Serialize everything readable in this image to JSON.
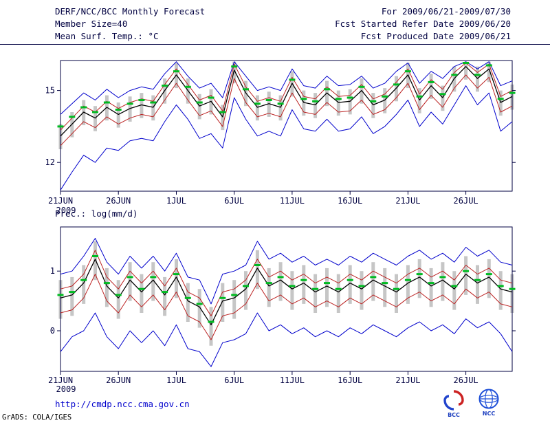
{
  "header": {
    "left": [
      "DERF/NCC/BCC Monthly Forecast",
      "Member Size=40"
    ],
    "right": [
      "For 2009/06/21-2009/07/30",
      "Fcst Started Refer Date 2009/06/20",
      "Fcst Produced Date 2009/06/21"
    ]
  },
  "footer": {
    "url": "http://cmdp.ncc.cma.gov.cn",
    "credit": "GrADS: COLA/IGES",
    "bcc_text": "BCC",
    "ncc_text": "NCC"
  },
  "colors": {
    "text": "#000040",
    "min_max_line": "#0000cc",
    "spread_line": "#bb2222",
    "mean_line": "#000000",
    "obs_dash": "#00bb22",
    "spread_bar": "#c6c6c6",
    "url_link": "#0000cc"
  },
  "chart_data": [
    {
      "type": "line",
      "title": "Mean Surf. Temp.: °C",
      "x_year_label": "2009",
      "x_tick_labels": [
        "21JUN",
        "26JUN",
        "1JUL",
        "6JUL",
        "11JUL",
        "16JUL",
        "21JUL",
        "26JUL"
      ],
      "x_tick_days": [
        0,
        5,
        10,
        15,
        20,
        25,
        30,
        35
      ],
      "n_days": 40,
      "ylim": [
        10.8,
        16.25
      ],
      "yticks": [
        12,
        15
      ],
      "grid": false,
      "legend": "none",
      "series": [
        {
          "name": "ensemble-max",
          "color": "#0000cc",
          "width": 1,
          "values": [
            14.0,
            14.45,
            14.9,
            14.6,
            15.05,
            14.7,
            15.0,
            15.15,
            15.05,
            15.7,
            16.2,
            15.6,
            15.1,
            15.3,
            14.7,
            16.2,
            15.6,
            15.0,
            15.15,
            15.0,
            15.9,
            15.2,
            15.1,
            15.6,
            15.2,
            15.25,
            15.6,
            15.1,
            15.3,
            15.8,
            16.15,
            15.3,
            15.8,
            15.5,
            16.0,
            16.2,
            15.9,
            16.2,
            15.2,
            15.4
          ]
        },
        {
          "name": "upper-spread",
          "color": "#bb2222",
          "width": 1,
          "values": [
            13.35,
            13.85,
            14.35,
            14.1,
            14.55,
            14.25,
            14.5,
            14.65,
            14.55,
            15.25,
            15.9,
            15.25,
            14.6,
            14.8,
            14.15,
            16.1,
            15.15,
            14.55,
            14.7,
            14.55,
            15.55,
            14.75,
            14.65,
            15.15,
            14.75,
            14.8,
            15.25,
            14.65,
            14.85,
            15.35,
            15.9,
            14.85,
            15.45,
            15.05,
            15.75,
            16.15,
            15.75,
            16.1,
            14.75,
            15.0
          ]
        },
        {
          "name": "ensemble-mean",
          "color": "#000000",
          "width": 1.3,
          "values": [
            13.1,
            13.6,
            14.1,
            13.85,
            14.3,
            14.0,
            14.25,
            14.4,
            14.3,
            15.0,
            15.65,
            15.0,
            14.35,
            14.55,
            13.9,
            15.85,
            14.9,
            14.3,
            14.45,
            14.3,
            15.3,
            14.5,
            14.4,
            14.9,
            14.5,
            14.55,
            15.0,
            14.4,
            14.6,
            15.1,
            15.65,
            14.6,
            15.2,
            14.7,
            15.5,
            16.0,
            15.5,
            15.9,
            14.5,
            14.75
          ]
        },
        {
          "name": "lower-spread",
          "color": "#bb2222",
          "width": 1,
          "values": [
            12.7,
            13.2,
            13.7,
            13.45,
            13.9,
            13.6,
            13.85,
            14.0,
            13.9,
            14.6,
            15.3,
            14.6,
            13.95,
            14.15,
            13.5,
            15.5,
            14.5,
            13.9,
            14.05,
            13.9,
            14.9,
            14.1,
            14.0,
            14.5,
            14.1,
            14.15,
            14.6,
            14.0,
            14.2,
            14.7,
            15.3,
            14.2,
            14.8,
            14.3,
            15.1,
            15.65,
            15.1,
            15.55,
            14.1,
            14.35
          ]
        },
        {
          "name": "ensemble-min",
          "color": "#0000cc",
          "width": 1,
          "values": [
            10.85,
            11.6,
            12.3,
            12.0,
            12.6,
            12.5,
            12.9,
            13.0,
            12.9,
            13.7,
            14.4,
            13.8,
            13.0,
            13.2,
            12.6,
            14.7,
            13.8,
            13.1,
            13.3,
            13.1,
            14.2,
            13.4,
            13.3,
            13.8,
            13.3,
            13.4,
            13.9,
            13.2,
            13.5,
            14.0,
            14.6,
            13.5,
            14.1,
            13.6,
            14.4,
            15.2,
            14.4,
            14.9,
            13.3,
            13.7
          ]
        }
      ],
      "spread_bars": {
        "name": "ensemble-spread-bar",
        "color": "#c6c6c6",
        "low": [
          12.55,
          13.05,
          13.55,
          13.3,
          13.75,
          13.45,
          13.7,
          13.85,
          13.75,
          14.45,
          15.1,
          14.45,
          13.8,
          14.0,
          13.35,
          15.3,
          14.35,
          13.75,
          13.9,
          13.75,
          14.75,
          13.95,
          13.85,
          14.35,
          13.95,
          14.0,
          14.45,
          13.85,
          14.05,
          14.55,
          15.1,
          14.05,
          14.65,
          14.15,
          14.95,
          15.45,
          14.95,
          15.35,
          13.95,
          14.2
        ],
        "high": [
          13.6,
          14.1,
          14.6,
          14.35,
          14.8,
          14.5,
          14.75,
          14.9,
          14.8,
          15.5,
          16.15,
          15.5,
          14.85,
          15.05,
          14.4,
          16.2,
          15.4,
          14.8,
          14.95,
          14.8,
          15.8,
          15.0,
          14.9,
          15.4,
          15.0,
          15.05,
          15.5,
          14.9,
          15.1,
          15.6,
          16.15,
          15.1,
          15.7,
          15.2,
          16.0,
          16.2,
          16.0,
          16.2,
          15.0,
          15.25
        ]
      },
      "green_dashes": {
        "name": "observation-dash",
        "color": "#00bb22",
        "values": [
          13.5,
          13.9,
          14.3,
          14.1,
          14.5,
          14.2,
          14.45,
          14.6,
          14.5,
          15.2,
          15.8,
          15.15,
          14.5,
          14.7,
          14.1,
          16.0,
          15.05,
          14.45,
          14.6,
          14.45,
          15.45,
          14.65,
          14.55,
          15.05,
          14.65,
          14.7,
          15.15,
          14.55,
          14.75,
          15.25,
          15.8,
          14.75,
          15.35,
          14.85,
          15.65,
          16.15,
          15.65,
          16.05,
          14.65,
          14.9
        ]
      }
    },
    {
      "type": "line",
      "title": "Prec.: log(mm/d)",
      "x_year_label": "2009",
      "x_tick_labels": [
        "21JUN",
        "26JUN",
        "1JUL",
        "6JUL",
        "11JUL",
        "16JUL",
        "21JUL",
        "26JUL"
      ],
      "x_tick_days": [
        0,
        5,
        10,
        15,
        20,
        25,
        30,
        35
      ],
      "n_days": 40,
      "ylim": [
        -0.68,
        1.74
      ],
      "yticks": [
        0,
        1
      ],
      "grid": false,
      "legend": "none",
      "series": [
        {
          "name": "ensemble-max",
          "color": "#0000cc",
          "width": 1,
          "values": [
            0.95,
            1.0,
            1.25,
            1.55,
            1.15,
            0.95,
            1.25,
            1.05,
            1.25,
            1.0,
            1.3,
            0.9,
            0.85,
            0.45,
            0.95,
            1.0,
            1.1,
            1.5,
            1.2,
            1.3,
            1.15,
            1.25,
            1.1,
            1.2,
            1.1,
            1.25,
            1.15,
            1.3,
            1.2,
            1.1,
            1.25,
            1.35,
            1.2,
            1.3,
            1.15,
            1.4,
            1.25,
            1.35,
            1.15,
            1.1
          ]
        },
        {
          "name": "upper-spread",
          "color": "#bb2222",
          "width": 1,
          "values": [
            0.7,
            0.75,
            0.95,
            1.35,
            0.9,
            0.7,
            1.0,
            0.8,
            1.0,
            0.75,
            1.05,
            0.65,
            0.55,
            0.25,
            0.65,
            0.7,
            0.85,
            1.2,
            0.9,
            1.0,
            0.85,
            0.95,
            0.8,
            0.9,
            0.8,
            0.95,
            0.85,
            1.0,
            0.9,
            0.8,
            0.95,
            1.05,
            0.9,
            1.0,
            0.85,
            1.1,
            0.95,
            1.05,
            0.85,
            0.8
          ]
        },
        {
          "name": "ensemble-mean",
          "color": "#000000",
          "width": 1.3,
          "values": [
            0.55,
            0.6,
            0.8,
            1.2,
            0.75,
            0.55,
            0.85,
            0.65,
            0.85,
            0.6,
            0.9,
            0.5,
            0.4,
            0.1,
            0.5,
            0.55,
            0.7,
            1.05,
            0.75,
            0.85,
            0.7,
            0.8,
            0.65,
            0.75,
            0.65,
            0.8,
            0.7,
            0.85,
            0.75,
            0.65,
            0.8,
            0.9,
            0.75,
            0.85,
            0.7,
            0.95,
            0.8,
            0.9,
            0.7,
            0.65
          ]
        },
        {
          "name": "lower-spread",
          "color": "#bb2222",
          "width": 1,
          "values": [
            0.3,
            0.35,
            0.55,
            0.95,
            0.5,
            0.3,
            0.6,
            0.4,
            0.6,
            0.35,
            0.65,
            0.25,
            0.15,
            -0.15,
            0.25,
            0.3,
            0.45,
            0.8,
            0.5,
            0.6,
            0.45,
            0.55,
            0.4,
            0.5,
            0.4,
            0.55,
            0.45,
            0.6,
            0.5,
            0.4,
            0.55,
            0.65,
            0.5,
            0.6,
            0.45,
            0.7,
            0.55,
            0.65,
            0.45,
            0.4
          ]
        },
        {
          "name": "ensemble-min",
          "color": "#0000cc",
          "width": 1,
          "values": [
            -0.35,
            -0.1,
            0.0,
            0.3,
            -0.1,
            -0.3,
            0.0,
            -0.2,
            0.0,
            -0.25,
            0.1,
            -0.3,
            -0.35,
            -0.6,
            -0.2,
            -0.15,
            -0.05,
            0.3,
            0.0,
            0.1,
            -0.05,
            0.05,
            -0.1,
            0.0,
            -0.1,
            0.05,
            -0.05,
            0.1,
            0.0,
            -0.1,
            0.05,
            0.15,
            0.0,
            0.1,
            -0.05,
            0.2,
            0.05,
            0.15,
            -0.05,
            -0.35
          ]
        }
      ],
      "spread_bars": {
        "name": "ensemble-spread-bar",
        "color": "#c6c6c6",
        "low": [
          0.2,
          0.25,
          0.45,
          0.85,
          0.4,
          0.2,
          0.5,
          0.3,
          0.5,
          0.25,
          0.55,
          0.15,
          0.05,
          -0.25,
          0.15,
          0.2,
          0.35,
          0.7,
          0.4,
          0.5,
          0.35,
          0.45,
          0.3,
          0.4,
          0.3,
          0.45,
          0.35,
          0.5,
          0.4,
          0.3,
          0.45,
          0.55,
          0.4,
          0.5,
          0.35,
          0.6,
          0.45,
          0.55,
          0.35,
          0.3
        ],
        "high": [
          0.85,
          0.9,
          1.1,
          1.5,
          1.05,
          0.85,
          1.15,
          0.95,
          1.15,
          0.9,
          1.2,
          0.8,
          0.7,
          0.4,
          0.8,
          0.85,
          1.0,
          1.35,
          1.05,
          1.15,
          1.0,
          1.1,
          0.95,
          1.05,
          0.95,
          1.1,
          1.0,
          1.15,
          1.05,
          0.95,
          1.1,
          1.2,
          1.05,
          1.15,
          1.0,
          1.25,
          1.1,
          1.2,
          1.0,
          0.95
        ]
      },
      "green_dashes": {
        "name": "observation-dash",
        "color": "#00bb22",
        "values": [
          0.6,
          0.65,
          0.85,
          1.25,
          0.8,
          0.6,
          0.9,
          0.7,
          0.9,
          0.65,
          0.95,
          0.55,
          0.45,
          0.15,
          0.55,
          0.6,
          0.75,
          1.1,
          0.8,
          0.9,
          0.75,
          0.85,
          0.7,
          0.8,
          0.7,
          0.85,
          0.75,
          0.9,
          0.8,
          0.7,
          0.85,
          0.95,
          0.8,
          0.9,
          0.75,
          1.0,
          0.85,
          0.95,
          0.75,
          0.7
        ]
      }
    }
  ]
}
